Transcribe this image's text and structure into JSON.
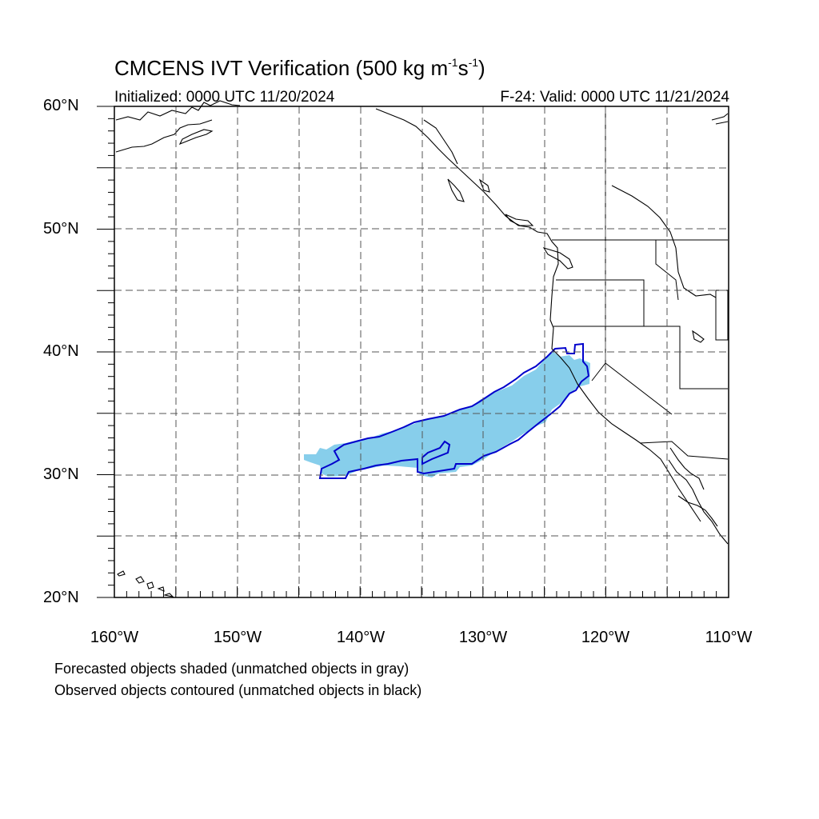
{
  "header": {
    "title_main": "CMCENS IVT Verification (500 kg m",
    "title_exp1": "-1",
    "title_mid": "s",
    "title_exp2": "-1",
    "title_end": ")",
    "initialized": "Initialized: 0000 UTC 11/20/2024",
    "valid": "F-24: Valid: 0000 UTC 11/21/2024"
  },
  "axes": {
    "lat_labels": [
      "60°N",
      "50°N",
      "40°N",
      "30°N",
      "20°N"
    ],
    "lon_labels": [
      "160°W",
      "150°W",
      "140°W",
      "130°W",
      "120°W",
      "110°W"
    ],
    "lat_range": [
      20,
      60
    ],
    "lon_range": [
      -160,
      -110
    ],
    "grid": "dashed every 5 degrees"
  },
  "legend": {
    "line1": "Forecasted objects shaded (unmatched objects in gray)",
    "line2": "Observed objects contoured (unmatched objects in black)"
  },
  "colors": {
    "forecast_fill": "#87ceeb",
    "observed_contour": "#0000cc",
    "coastline": "#000000",
    "grid": "#555555"
  }
}
